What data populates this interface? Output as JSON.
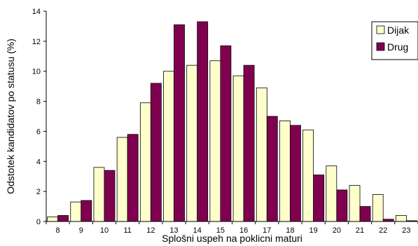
{
  "chart_data": {
    "type": "bar",
    "categories": [
      "8",
      "9",
      "10",
      "11",
      "12",
      "13",
      "14",
      "15",
      "16",
      "17",
      "18",
      "19",
      "20",
      "21",
      "22",
      "23"
    ],
    "series": [
      {
        "name": "Dijak",
        "color": "#ffffcc",
        "values": [
          0.3,
          1.3,
          3.6,
          5.6,
          7.9,
          10.0,
          10.4,
          10.7,
          9.7,
          8.9,
          6.7,
          6.1,
          3.7,
          2.4,
          1.8,
          0.4
        ]
      },
      {
        "name": "Drug",
        "color": "#800050",
        "values": [
          0.4,
          1.4,
          3.4,
          5.8,
          9.2,
          13.1,
          13.3,
          11.7,
          10.4,
          7.0,
          6.4,
          3.1,
          2.1,
          1.0,
          0.15,
          0.05
        ]
      }
    ],
    "xlabel": "Splošni uspeh na poklicni maturi",
    "ylabel": "Odstotek kandidatov po statusu (%)",
    "ylim": [
      0,
      14
    ],
    "yticks": [
      0,
      2,
      4,
      6,
      8,
      10,
      12,
      14
    ],
    "grid": false,
    "legend": "right"
  }
}
